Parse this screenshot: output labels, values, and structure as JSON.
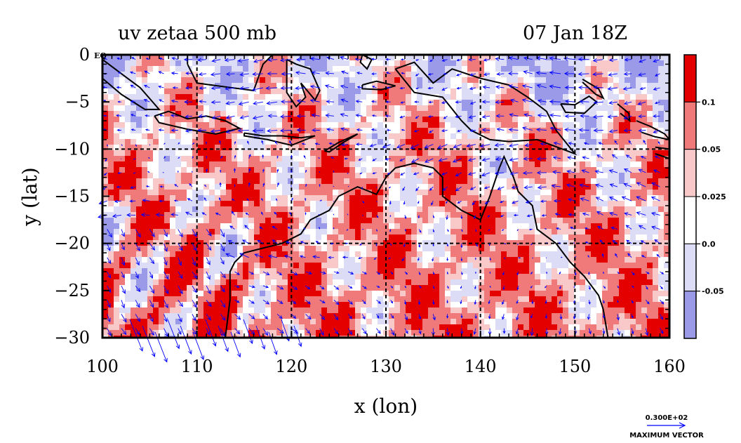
{
  "chart_data": {
    "type": "heatmap",
    "title": "uv zetaa 500 mb",
    "date_label": "07 Jan 18Z",
    "xlabel": "x (lon)",
    "ylabel": "y (lat)",
    "xlim": [
      100,
      160
    ],
    "ylim": [
      -30,
      0
    ],
    "x_ticks": [
      100,
      110,
      120,
      130,
      140,
      150,
      160
    ],
    "y_ticks": [
      {
        "value": 0,
        "label": "0"
      },
      {
        "value": -5,
        "label": "−5"
      },
      {
        "value": -10,
        "label": "−10"
      },
      {
        "value": -15,
        "label": "−15"
      },
      {
        "value": -20,
        "label": "−20"
      },
      {
        "value": -25,
        "label": "−25"
      },
      {
        "value": -30,
        "label": "−30"
      }
    ],
    "eq_label": "EQ",
    "grid_lon": [
      110,
      120,
      130,
      140,
      150
    ],
    "grid_lat": [
      -10,
      -20
    ],
    "colorbar": {
      "levels": [
        "0.1",
        "0.05",
        "0.025",
        "0.0",
        "-0.05"
      ],
      "colors": [
        "#e50000",
        "#f07a7a",
        "#f9c8c8",
        "#ffffff",
        "#dcdcf7",
        "#9a9ae9"
      ]
    },
    "vector_scale": {
      "value_label": "0.300E+02",
      "caption": "MAXIMUM VECTOR"
    },
    "colors": {
      "vector": "#0000ff",
      "coast": "#000000"
    }
  }
}
